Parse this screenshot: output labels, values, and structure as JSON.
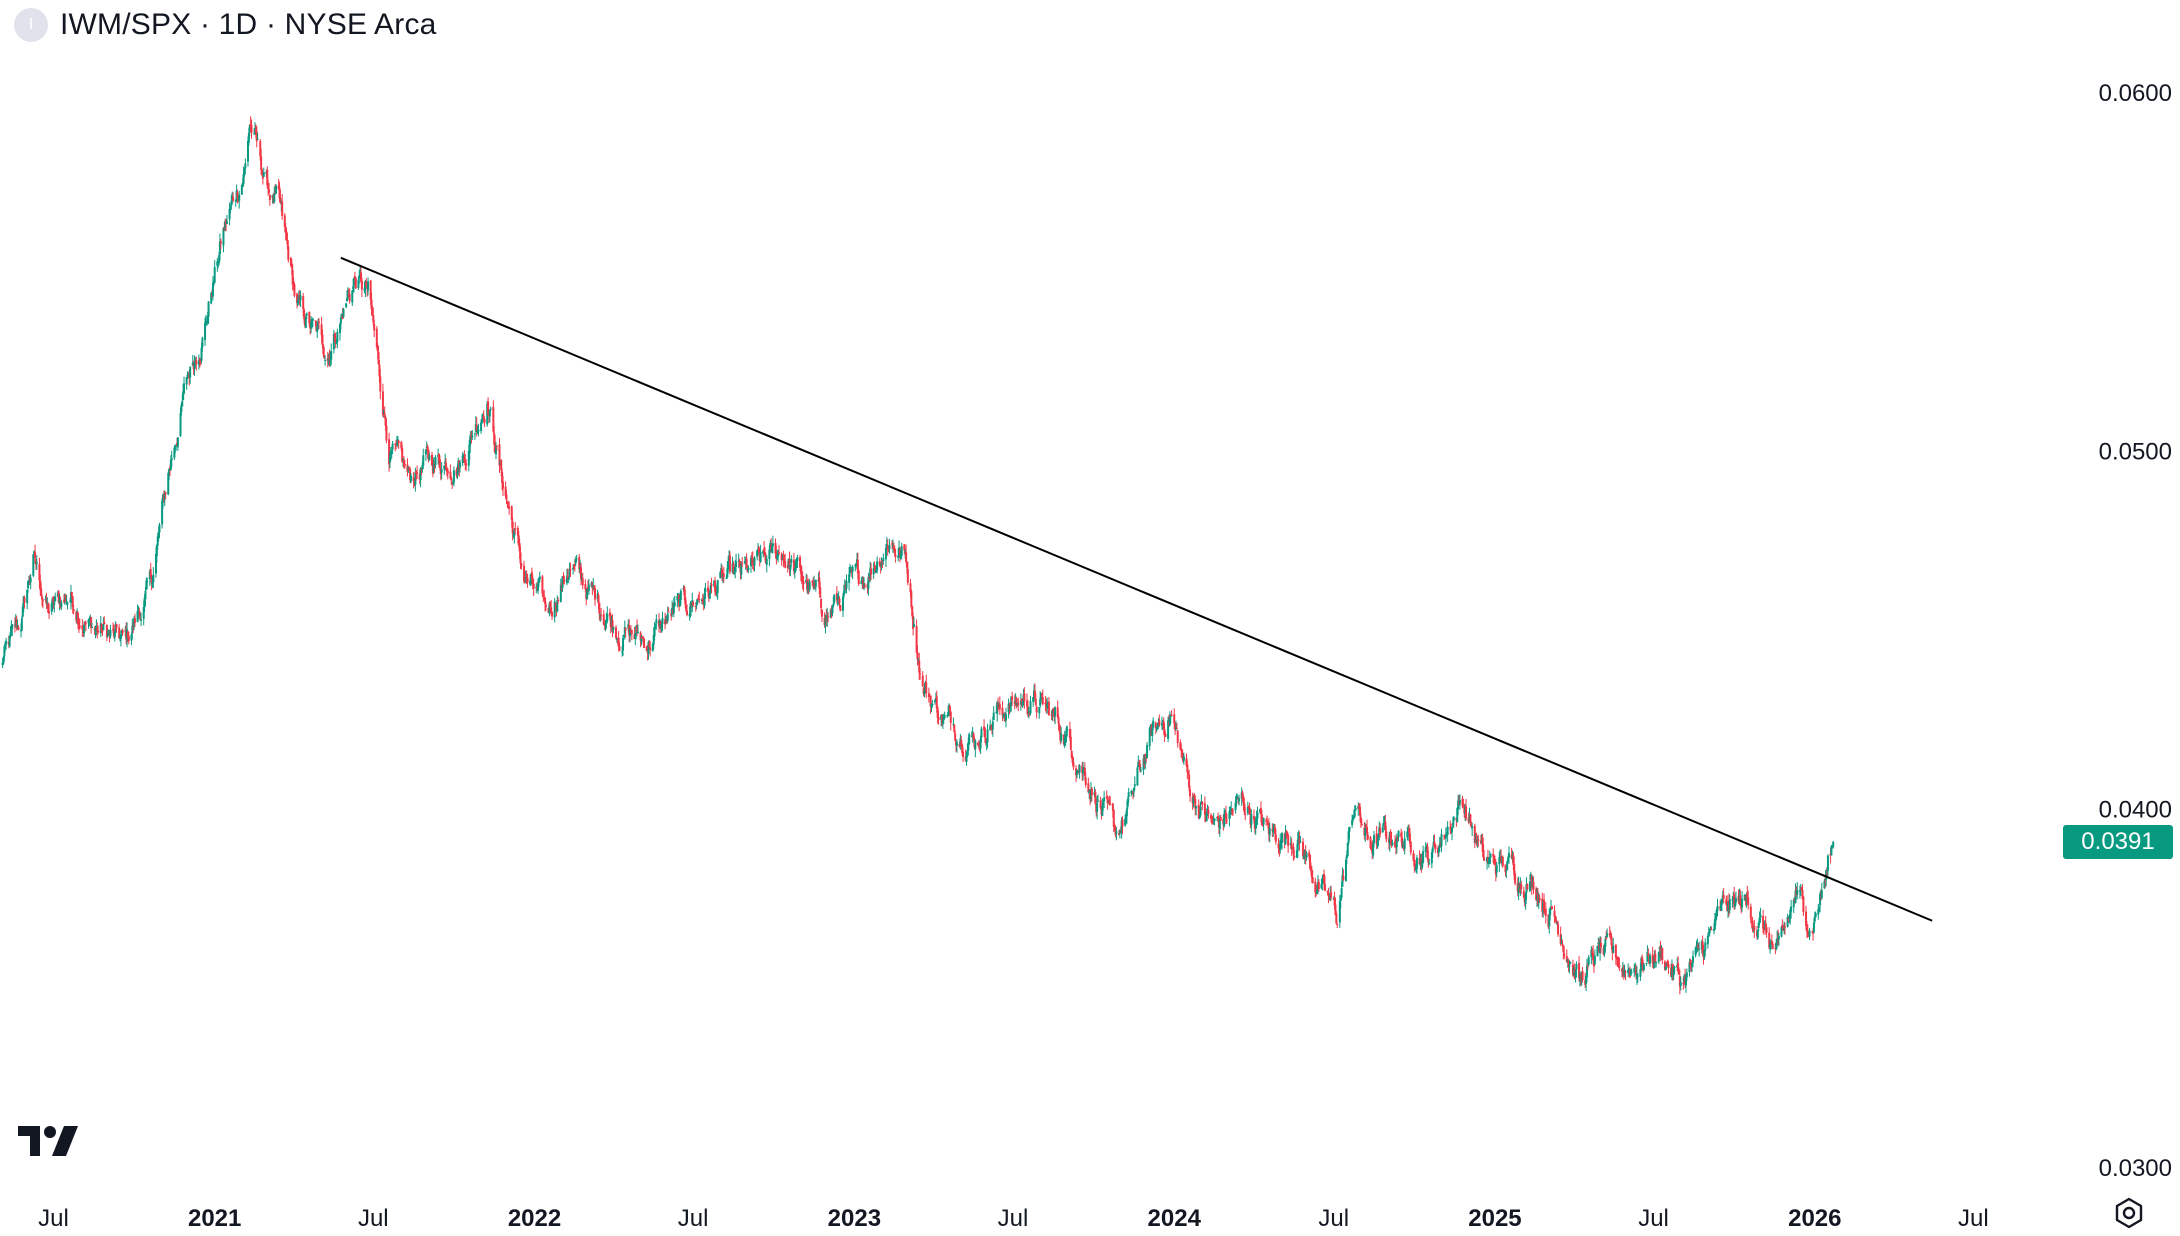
{
  "header": {
    "symbol_initial": "I",
    "title": "IWM/SPX · 1D · NYSE Arca"
  },
  "last_price": {
    "text": "0.0391",
    "color": "#089981"
  },
  "colors": {
    "up": "#089981",
    "down": "#f23645",
    "trendline": "#000000"
  },
  "icons": {
    "logo": "tradingview-logo-icon",
    "settings": "gear-icon"
  },
  "chart_data": {
    "type": "candlestick",
    "interval": "1D",
    "title": "IWM/SPX · 1D · NYSE Arca",
    "x_range": [
      "2020-05-01",
      "2026-09-15"
    ],
    "ylim": [
      0.03,
      0.062
    ],
    "y_ticks": [
      {
        "value": 0.06,
        "label": "0.0600"
      },
      {
        "value": 0.05,
        "label": "0.0500"
      },
      {
        "value": 0.04,
        "label": "0.0400"
      },
      {
        "value": 0.03,
        "label": "0.0300"
      }
    ],
    "x_ticks": [
      {
        "date": "2020-07-01",
        "label": "Jul",
        "major": false
      },
      {
        "date": "2021-01-01",
        "label": "2021",
        "major": true
      },
      {
        "date": "2021-07-01",
        "label": "Jul",
        "major": false
      },
      {
        "date": "2022-01-01",
        "label": "2022",
        "major": true
      },
      {
        "date": "2022-07-01",
        "label": "Jul",
        "major": false
      },
      {
        "date": "2023-01-01",
        "label": "2023",
        "major": true
      },
      {
        "date": "2023-07-01",
        "label": "Jul",
        "major": false
      },
      {
        "date": "2024-01-01",
        "label": "2024",
        "major": true
      },
      {
        "date": "2024-07-01",
        "label": "Jul",
        "major": false
      },
      {
        "date": "2025-01-01",
        "label": "2025",
        "major": true
      },
      {
        "date": "2025-07-01",
        "label": "Jul",
        "major": false
      },
      {
        "date": "2026-01-01",
        "label": "2026",
        "major": true
      },
      {
        "date": "2026-07-01",
        "label": "Jul",
        "major": false
      }
    ],
    "price_path": [
      [
        "2020-05-01",
        0.044
      ],
      [
        "2020-05-25",
        0.0452
      ],
      [
        "2020-06-08",
        0.047
      ],
      [
        "2020-06-25",
        0.0455
      ],
      [
        "2020-07-20",
        0.046
      ],
      [
        "2020-08-10",
        0.0452
      ],
      [
        "2020-09-20",
        0.0446
      ],
      [
        "2020-10-20",
        0.0462
      ],
      [
        "2020-11-10",
        0.0495
      ],
      [
        "2020-12-01",
        0.052
      ],
      [
        "2020-12-20",
        0.0535
      ],
      [
        "2021-01-10",
        0.056
      ],
      [
        "2021-02-05",
        0.058
      ],
      [
        "2021-02-10",
        0.0592
      ],
      [
        "2021-02-28",
        0.0575
      ],
      [
        "2021-03-15",
        0.0568
      ],
      [
        "2021-04-05",
        0.054
      ],
      [
        "2021-05-10",
        0.0528
      ],
      [
        "2021-06-10",
        0.0548
      ],
      [
        "2021-06-25",
        0.0544
      ],
      [
        "2021-07-20",
        0.05
      ],
      [
        "2021-08-10",
        0.0492
      ],
      [
        "2021-09-01",
        0.0497
      ],
      [
        "2021-10-10",
        0.0498
      ],
      [
        "2021-11-08",
        0.0516
      ],
      [
        "2021-11-22",
        0.0496
      ],
      [
        "2021-12-20",
        0.0465
      ],
      [
        "2022-01-15",
        0.0455
      ],
      [
        "2022-02-10",
        0.0468
      ],
      [
        "2022-03-01",
        0.0462
      ],
      [
        "2022-04-10",
        0.045
      ],
      [
        "2022-05-10",
        0.0447
      ],
      [
        "2022-06-10",
        0.0455
      ],
      [
        "2022-08-01",
        0.0463
      ],
      [
        "2022-09-01",
        0.0466
      ],
      [
        "2022-10-10",
        0.0472
      ],
      [
        "2022-11-01",
        0.0465
      ],
      [
        "2022-12-01",
        0.0455
      ],
      [
        "2023-01-15",
        0.0466
      ],
      [
        "2023-02-10",
        0.0476
      ],
      [
        "2023-03-01",
        0.047
      ],
      [
        "2023-03-20",
        0.0435
      ],
      [
        "2023-04-15",
        0.0425
      ],
      [
        "2023-05-20",
        0.042
      ],
      [
        "2023-06-15",
        0.0428
      ],
      [
        "2023-07-20",
        0.0431
      ],
      [
        "2023-08-20",
        0.0425
      ],
      [
        "2023-09-20",
        0.0412
      ],
      [
        "2023-10-25",
        0.0392
      ],
      [
        "2023-11-10",
        0.04
      ],
      [
        "2023-12-05",
        0.042
      ],
      [
        "2023-12-28",
        0.0427
      ],
      [
        "2024-01-20",
        0.0405
      ],
      [
        "2024-02-15",
        0.0395
      ],
      [
        "2024-03-20",
        0.0402
      ],
      [
        "2024-04-20",
        0.0393
      ],
      [
        "2024-05-20",
        0.0393
      ],
      [
        "2024-06-15",
        0.0378
      ],
      [
        "2024-07-05",
        0.037
      ],
      [
        "2024-07-25",
        0.0402
      ],
      [
        "2024-08-10",
        0.039
      ],
      [
        "2024-09-10",
        0.0393
      ],
      [
        "2024-10-20",
        0.0387
      ],
      [
        "2024-11-25",
        0.0403
      ],
      [
        "2024-12-20",
        0.0385
      ],
      [
        "2025-01-20",
        0.0384
      ],
      [
        "2025-02-20",
        0.0378
      ],
      [
        "2025-03-20",
        0.0365
      ],
      [
        "2025-04-08",
        0.0352
      ],
      [
        "2025-05-01",
        0.036
      ],
      [
        "2025-06-01",
        0.0356
      ],
      [
        "2025-07-10",
        0.036
      ],
      [
        "2025-08-01",
        0.0352
      ],
      [
        "2025-08-20",
        0.0358
      ],
      [
        "2025-09-20",
        0.0372
      ],
      [
        "2025-10-15",
        0.0374
      ],
      [
        "2025-11-05",
        0.0366
      ],
      [
        "2025-11-20",
        0.0358
      ],
      [
        "2025-12-10",
        0.0376
      ],
      [
        "2025-12-28",
        0.0368
      ],
      [
        "2026-01-12",
        0.038
      ],
      [
        "2026-01-22",
        0.0391
      ]
    ],
    "trendline": {
      "start": {
        "date": "2021-05-25",
        "value": 0.0554
      },
      "end": {
        "date": "2026-05-15",
        "value": 0.0369
      }
    },
    "last_value": 0.0391
  }
}
